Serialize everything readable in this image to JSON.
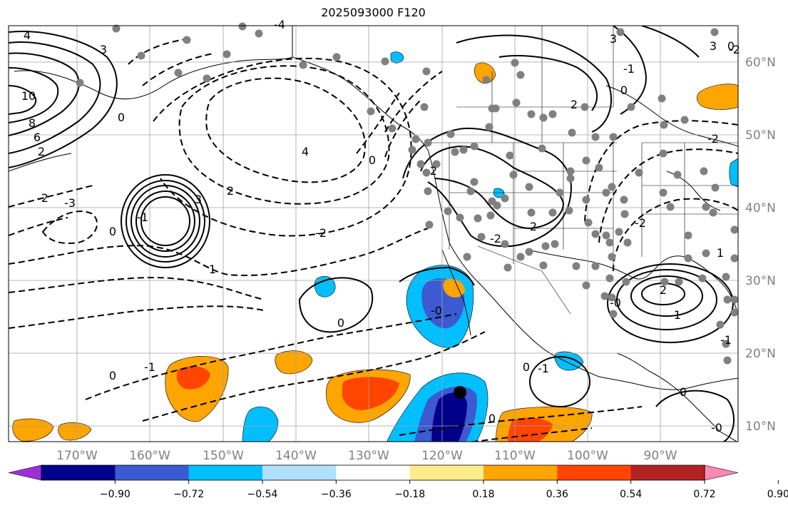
{
  "title": "2025093000 F120",
  "map": {
    "lon_labels": [
      "170°W",
      "160°W",
      "150°W",
      "140°W",
      "130°W",
      "120°W",
      "110°W",
      "100°W",
      "90°W"
    ],
    "lat_labels": [
      "60°N",
      "50°N",
      "40°N",
      "30°N",
      "20°N",
      "10°N"
    ],
    "contour_labels": [
      "4",
      "3",
      "10",
      "8",
      "6",
      "0",
      "2",
      "-2",
      "-3",
      "4",
      "-4",
      "3",
      "2",
      "-1",
      "0",
      "1",
      "2",
      "-2",
      "-2",
      "0",
      "0",
      "-0",
      "0",
      "-1",
      "0",
      "2",
      "1",
      "-2",
      "-0",
      "1",
      "-2",
      "-1",
      "0",
      "-1",
      "0",
      "-0",
      "0",
      "-1",
      "2",
      "0",
      "3",
      "3",
      "2",
      "-2"
    ]
  },
  "colorbar": {
    "tick_labels": [
      "−0.90",
      "−0.72",
      "−0.54",
      "−0.36",
      "−0.18",
      "0.18",
      "0.36",
      "0.54",
      "0.72",
      "0.90"
    ],
    "colors": [
      "#9b30d9",
      "#00008b",
      "#3c5ad1",
      "#00bfff",
      "#b0e0ff",
      "#ffffff",
      "#ffec8b",
      "#ffa500",
      "#ff4500",
      "#b22222",
      "#ff88b0"
    ]
  }
}
